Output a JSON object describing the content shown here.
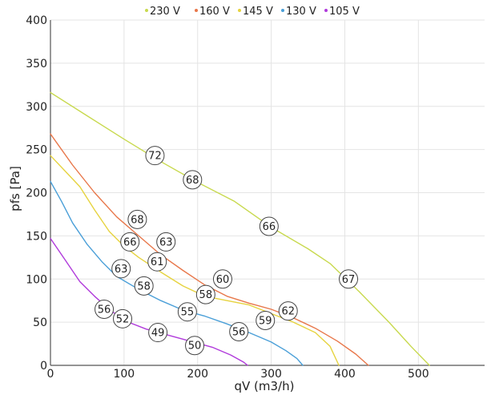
{
  "chart_data": {
    "type": "line",
    "title": "",
    "xlabel": "qV (m3/h)",
    "ylabel": "pfs [Pa]",
    "xlim": [
      0,
      590
    ],
    "ylim": [
      0,
      400
    ],
    "xticks": [
      "0",
      "100",
      "200",
      "300",
      "400",
      "500"
    ],
    "yticks": [
      "0",
      "50",
      "100",
      "150",
      "200",
      "250",
      "300",
      "350",
      "400"
    ],
    "xtick_values": [
      0,
      100,
      200,
      300,
      400,
      500
    ],
    "ytick_values": [
      0,
      50,
      100,
      150,
      200,
      250,
      300,
      350,
      400
    ],
    "grid": true,
    "legend_position": "top-center",
    "series": [
      {
        "name": "230 V",
        "color": "#c8d94e",
        "points": [
          [
            0,
            316
          ],
          [
            50,
            289
          ],
          [
            100,
            262
          ],
          [
            150,
            236
          ],
          [
            200,
            212
          ],
          [
            250,
            190
          ],
          [
            300,
            160
          ],
          [
            350,
            135
          ],
          [
            380,
            118
          ],
          [
            420,
            85
          ],
          [
            460,
            50
          ],
          [
            490,
            22
          ],
          [
            515,
            0
          ]
        ]
      },
      {
        "name": "160 V",
        "color": "#e8774a",
        "points": [
          [
            0,
            268
          ],
          [
            30,
            232
          ],
          [
            60,
            200
          ],
          [
            90,
            172
          ],
          [
            120,
            150
          ],
          [
            150,
            128
          ],
          [
            180,
            110
          ],
          [
            210,
            93
          ],
          [
            240,
            80
          ],
          [
            270,
            72
          ],
          [
            300,
            65
          ],
          [
            330,
            55
          ],
          [
            360,
            43
          ],
          [
            390,
            28
          ],
          [
            415,
            13
          ],
          [
            432,
            0
          ]
        ]
      },
      {
        "name": "145 V",
        "color": "#e6d33f",
        "points": [
          [
            0,
            243
          ],
          [
            20,
            225
          ],
          [
            40,
            207
          ],
          [
            60,
            180
          ],
          [
            80,
            155
          ],
          [
            100,
            138
          ],
          [
            120,
            125
          ],
          [
            150,
            108
          ],
          [
            180,
            92
          ],
          [
            210,
            80
          ],
          [
            240,
            75
          ],
          [
            270,
            70
          ],
          [
            300,
            60
          ],
          [
            330,
            50
          ],
          [
            360,
            38
          ],
          [
            380,
            22
          ],
          [
            392,
            0
          ]
        ]
      },
      {
        "name": "130 V",
        "color": "#4a9fd8",
        "points": [
          [
            0,
            213
          ],
          [
            15,
            190
          ],
          [
            30,
            165
          ],
          [
            50,
            140
          ],
          [
            70,
            120
          ],
          [
            90,
            103
          ],
          [
            120,
            88
          ],
          [
            150,
            75
          ],
          [
            180,
            64
          ],
          [
            210,
            57
          ],
          [
            240,
            48
          ],
          [
            270,
            38
          ],
          [
            300,
            27
          ],
          [
            320,
            17
          ],
          [
            335,
            8
          ],
          [
            343,
            0
          ]
        ]
      },
      {
        "name": "105 V",
        "color": "#b03adb",
        "points": [
          [
            0,
            147
          ],
          [
            20,
            122
          ],
          [
            40,
            97
          ],
          [
            60,
            80
          ],
          [
            80,
            65
          ],
          [
            100,
            52
          ],
          [
            130,
            42
          ],
          [
            160,
            35
          ],
          [
            190,
            28
          ],
          [
            220,
            21
          ],
          [
            245,
            12
          ],
          [
            262,
            4
          ],
          [
            268,
            0
          ]
        ]
      }
    ],
    "annotations": [
      {
        "label": "72",
        "x": 142,
        "y": 243
      },
      {
        "label": "68",
        "x": 193,
        "y": 215
      },
      {
        "label": "66",
        "x": 297,
        "y": 161
      },
      {
        "label": "67",
        "x": 405,
        "y": 100
      },
      {
        "label": "68",
        "x": 118,
        "y": 169
      },
      {
        "label": "66",
        "x": 108,
        "y": 143
      },
      {
        "label": "63",
        "x": 157,
        "y": 143
      },
      {
        "label": "61",
        "x": 145,
        "y": 120
      },
      {
        "label": "63",
        "x": 96,
        "y": 112
      },
      {
        "label": "60",
        "x": 234,
        "y": 100
      },
      {
        "label": "58",
        "x": 127,
        "y": 92
      },
      {
        "label": "58",
        "x": 211,
        "y": 82
      },
      {
        "label": "62",
        "x": 323,
        "y": 63
      },
      {
        "label": "55",
        "x": 186,
        "y": 62
      },
      {
        "label": "59",
        "x": 292,
        "y": 52
      },
      {
        "label": "56",
        "x": 73,
        "y": 65
      },
      {
        "label": "52",
        "x": 98,
        "y": 54
      },
      {
        "label": "56",
        "x": 256,
        "y": 39
      },
      {
        "label": "49",
        "x": 146,
        "y": 38
      },
      {
        "label": "50",
        "x": 196,
        "y": 23
      }
    ]
  }
}
